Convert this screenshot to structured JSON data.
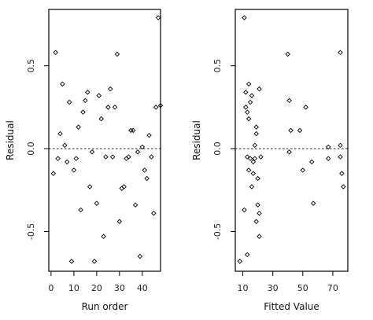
{
  "chart_data": [
    {
      "type": "scatter",
      "xlabel": "Run order",
      "ylabel": "Residual",
      "xlim": [
        -1,
        48
      ],
      "ylim": [
        -0.74,
        0.84
      ],
      "xticks": [
        0,
        10,
        20,
        30,
        40
      ],
      "yticks": [
        -0.5,
        0.0,
        0.5
      ],
      "xtick_labels": [
        "0",
        "10",
        "20",
        "30",
        "40"
      ],
      "ytick_labels": [
        "-0.5",
        "0.0",
        "0.5"
      ],
      "zero_line": "dotted",
      "points": [
        {
          "x": 1,
          "y": -0.15
        },
        {
          "x": 2,
          "y": 0.58
        },
        {
          "x": 3,
          "y": -0.06
        },
        {
          "x": 4,
          "y": 0.09
        },
        {
          "x": 5,
          "y": 0.39
        },
        {
          "x": 6,
          "y": 0.02
        },
        {
          "x": 7,
          "y": -0.08
        },
        {
          "x": 8,
          "y": 0.28
        },
        {
          "x": 9,
          "y": -0.68
        },
        {
          "x": 10,
          "y": -0.13
        },
        {
          "x": 11,
          "y": -0.06
        },
        {
          "x": 12,
          "y": 0.13
        },
        {
          "x": 13,
          "y": -0.37
        },
        {
          "x": 14,
          "y": 0.22
        },
        {
          "x": 15,
          "y": 0.29
        },
        {
          "x": 16,
          "y": 0.34
        },
        {
          "x": 17,
          "y": -0.23
        },
        {
          "x": 18,
          "y": -0.02
        },
        {
          "x": 19,
          "y": -0.68
        },
        {
          "x": 20,
          "y": -0.33
        },
        {
          "x": 21,
          "y": 0.32
        },
        {
          "x": 22,
          "y": 0.18
        },
        {
          "x": 23,
          "y": -0.53
        },
        {
          "x": 24,
          "y": -0.05
        },
        {
          "x": 25,
          "y": 0.25
        },
        {
          "x": 26,
          "y": 0.36
        },
        {
          "x": 27,
          "y": -0.05
        },
        {
          "x": 28,
          "y": 0.25
        },
        {
          "x": 29,
          "y": 0.57
        },
        {
          "x": 30,
          "y": -0.44
        },
        {
          "x": 31,
          "y": -0.24
        },
        {
          "x": 32,
          "y": -0.23
        },
        {
          "x": 33,
          "y": -0.06
        },
        {
          "x": 34,
          "y": -0.05
        },
        {
          "x": 35,
          "y": 0.11
        },
        {
          "x": 36,
          "y": 0.11
        },
        {
          "x": 37,
          "y": -0.34
        },
        {
          "x": 38,
          "y": -0.02
        },
        {
          "x": 39,
          "y": -0.65
        },
        {
          "x": 40,
          "y": 0.01
        },
        {
          "x": 41,
          "y": -0.13
        },
        {
          "x": 42,
          "y": -0.18
        },
        {
          "x": 43,
          "y": 0.08
        },
        {
          "x": 44,
          "y": -0.05
        },
        {
          "x": 45,
          "y": -0.39
        },
        {
          "x": 46,
          "y": 0.25
        },
        {
          "x": 47,
          "y": 0.79
        },
        {
          "x": 48,
          "y": 0.26
        }
      ]
    },
    {
      "type": "scatter",
      "xlabel": "Fitted Value",
      "ylabel": "Residual",
      "xlim": [
        5,
        80
      ],
      "ylim": [
        -0.74,
        0.84
      ],
      "xticks": [
        10,
        30,
        50,
        70
      ],
      "yticks": [
        -0.5,
        0.0,
        0.5
      ],
      "xtick_labels": [
        "10",
        "30",
        "50",
        "70"
      ],
      "ytick_labels": [
        "-0.5",
        "0.0",
        "0.5"
      ],
      "zero_line": "dotted",
      "points": [
        {
          "x": 8,
          "y": -0.68
        },
        {
          "x": 11,
          "y": 0.79
        },
        {
          "x": 11,
          "y": -0.37
        },
        {
          "x": 12,
          "y": 0.34
        },
        {
          "x": 12,
          "y": 0.25
        },
        {
          "x": 13,
          "y": 0.22
        },
        {
          "x": 13,
          "y": -0.64
        },
        {
          "x": 13,
          "y": -0.05
        },
        {
          "x": 14,
          "y": 0.39
        },
        {
          "x": 14,
          "y": 0.18
        },
        {
          "x": 14,
          "y": -0.13
        },
        {
          "x": 15,
          "y": 0.28
        },
        {
          "x": 15,
          "y": -0.06
        },
        {
          "x": 16,
          "y": -0.23
        },
        {
          "x": 16,
          "y": 0.32
        },
        {
          "x": 17,
          "y": -0.08
        },
        {
          "x": 17,
          "y": -0.15
        },
        {
          "x": 18,
          "y": 0.02
        },
        {
          "x": 18,
          "y": -0.06
        },
        {
          "x": 19,
          "y": 0.13
        },
        {
          "x": 19,
          "y": -0.44
        },
        {
          "x": 19,
          "y": 0.09
        },
        {
          "x": 20,
          "y": -0.18
        },
        {
          "x": 20,
          "y": -0.34
        },
        {
          "x": 21,
          "y": -0.39
        },
        {
          "x": 21,
          "y": -0.53
        },
        {
          "x": 21,
          "y": 0.36
        },
        {
          "x": 22,
          "y": -0.05
        },
        {
          "x": 40,
          "y": 0.57
        },
        {
          "x": 41,
          "y": 0.29
        },
        {
          "x": 41,
          "y": -0.02
        },
        {
          "x": 42,
          "y": 0.11
        },
        {
          "x": 48,
          "y": 0.11
        },
        {
          "x": 50,
          "y": -0.13
        },
        {
          "x": 52,
          "y": 0.25
        },
        {
          "x": 56,
          "y": -0.08
        },
        {
          "x": 57,
          "y": -0.33
        },
        {
          "x": 67,
          "y": 0.01
        },
        {
          "x": 67,
          "y": -0.06
        },
        {
          "x": 75,
          "y": 0.58
        },
        {
          "x": 75,
          "y": 0.02
        },
        {
          "x": 75,
          "y": -0.05
        },
        {
          "x": 76,
          "y": -0.15
        },
        {
          "x": 77,
          "y": -0.23
        }
      ]
    }
  ]
}
